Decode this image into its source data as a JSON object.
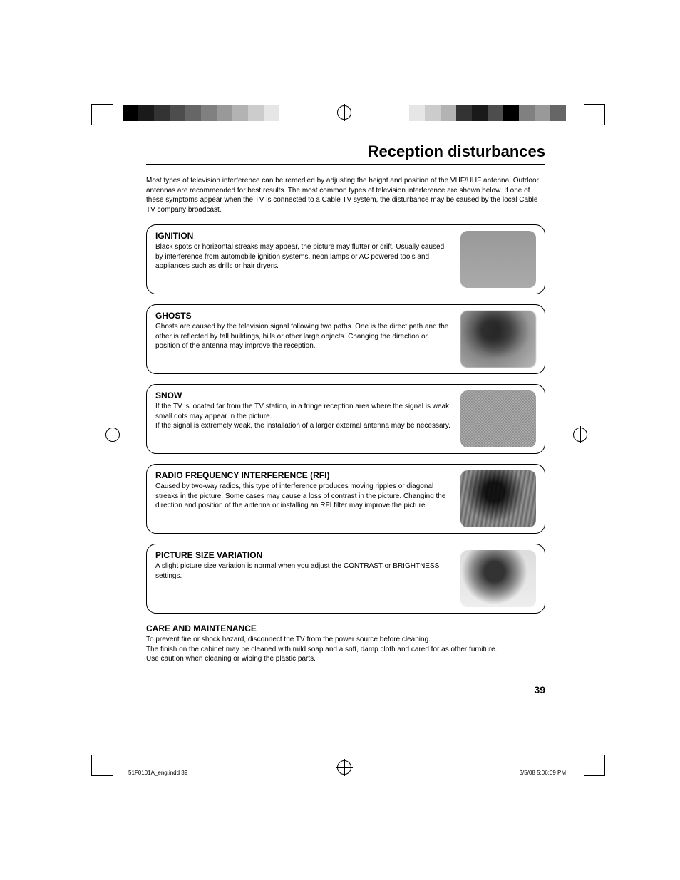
{
  "page": {
    "title": "Reception disturbances",
    "intro": "Most types of television interference can be remedied by adjusting the height and position of the VHF/UHF antenna. Outdoor antennas are recommended for best results. The most common types of television interference are shown below. If one of these symptoms appear when the TV is connected to a Cable TV system, the disturbance may be caused by the local Cable TV company broadcast.",
    "page_number": "39"
  },
  "disturbances": {
    "ignition": {
      "title": "IGNITION",
      "desc": "Black spots or horizontal streaks may appear, the picture may flutter or drift. Usually caused by interference from automobile ignition systems, neon lamps or AC powered tools and appliances such as drills or hair dryers."
    },
    "ghosts": {
      "title": "GHOSTS",
      "desc": "Ghosts are caused by the television signal following two paths. One is the direct path and the other is reflected by tall buildings, hills or other large objects. Changing the direction or position of the antenna may improve the reception."
    },
    "snow": {
      "title": "SNOW",
      "desc": "If the TV is located far from the TV station, in a fringe reception area where the signal is weak, small dots may appear in the picture.\nIf the signal is extremely weak, the installation of a larger external antenna may be necessary."
    },
    "rfi": {
      "title": "RADIO FREQUENCY INTERFERENCE (RFI)",
      "desc": "Caused by two-way radios, this type of interference produces moving ripples or diagonal streaks in the picture. Some cases may cause a loss of contrast in the picture. Changing the direction and position of the antenna or installing an RFI filter may improve the picture."
    },
    "picsize": {
      "title": "PICTURE SIZE VARIATION",
      "desc": "A slight picture size variation is normal when you adjust the CONTRAST or BRIGHTNESS settings."
    }
  },
  "care": {
    "title": "CARE AND MAINTENANCE",
    "line1": "To prevent fire or shock hazard, disconnect the TV from the power source before cleaning.",
    "line2": "The finish on the cabinet may be cleaned with mild soap and a soft, damp cloth and cared for as other furniture.",
    "line3": "Use caution when cleaning or wiping the plastic parts."
  },
  "footer": {
    "filename": "51F0101A_eng.indd   39",
    "timestamp": "3/5/08   5:06:09 PM"
  },
  "reg_colors_left": [
    "#000000",
    "#1a1a1a",
    "#333333",
    "#4d4d4d",
    "#666666",
    "#808080",
    "#999999",
    "#b3b3b3",
    "#cccccc",
    "#e6e6e6"
  ],
  "reg_colors_right": [
    "#e6e6e6",
    "#cccccc",
    "#b3b3b3",
    "#333333",
    "#1a1a1a",
    "#4d4d4d",
    "#000000",
    "#808080",
    "#999999",
    "#666666"
  ]
}
